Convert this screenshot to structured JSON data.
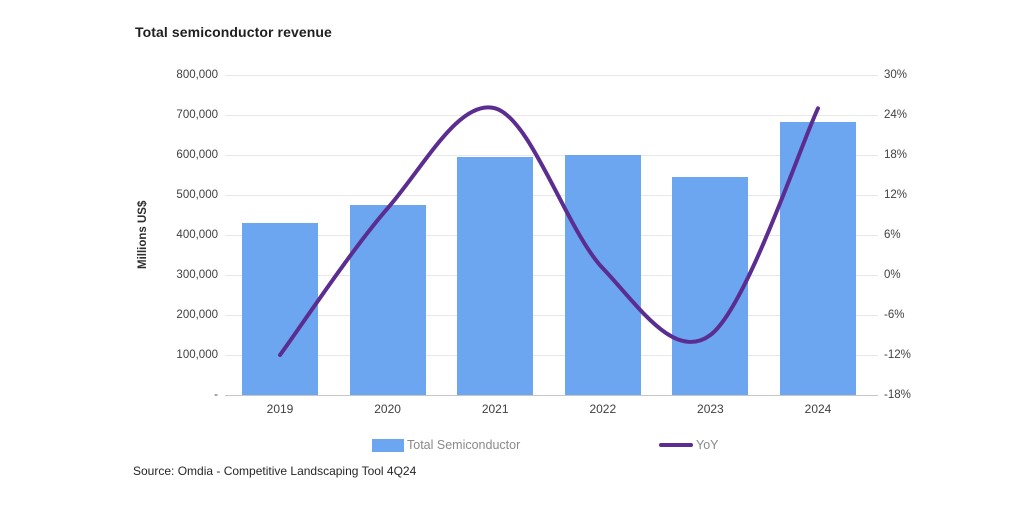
{
  "source": "Source: Omdia - Competitive Landscaping Tool 4Q24",
  "colors": {
    "bar": "#6ca6f0",
    "line": "#5b2d90",
    "grid": "#e8e8e8",
    "axis_line": "#c6c6c6",
    "axis_text": "#404040",
    "legend_text": "#8a8a8a"
  },
  "chart_data": {
    "type": "combo",
    "title": "Total semiconductor revenue",
    "ylabel_left": "Millions US$",
    "categories": [
      "2019",
      "2020",
      "2021",
      "2022",
      "2023",
      "2024"
    ],
    "series": [
      {
        "name": "Total Semiconductor",
        "type": "bar",
        "axis": "left",
        "color": "#6ca6f0",
        "values": [
          430000,
          475000,
          595000,
          601000,
          545000,
          683000
        ]
      },
      {
        "name": "YoY",
        "type": "line",
        "axis": "right",
        "color": "#5b2d90",
        "values": [
          -12,
          10,
          25,
          1,
          -9,
          25
        ]
      }
    ],
    "left_axis": {
      "min": 0,
      "max": 800000,
      "tick_labels": [
        "800,000",
        "700,000",
        "600,000",
        "500,000",
        "400,000",
        "300,000",
        "200,000",
        "100,000",
        "-"
      ]
    },
    "right_axis": {
      "min": -18,
      "max": 30,
      "tick_labels": [
        "30%",
        "24%",
        "18%",
        "12%",
        "6%",
        "0%",
        "-6%",
        "-12%",
        "-18%"
      ]
    },
    "grid": "horizontal",
    "legend_position": "bottom"
  }
}
